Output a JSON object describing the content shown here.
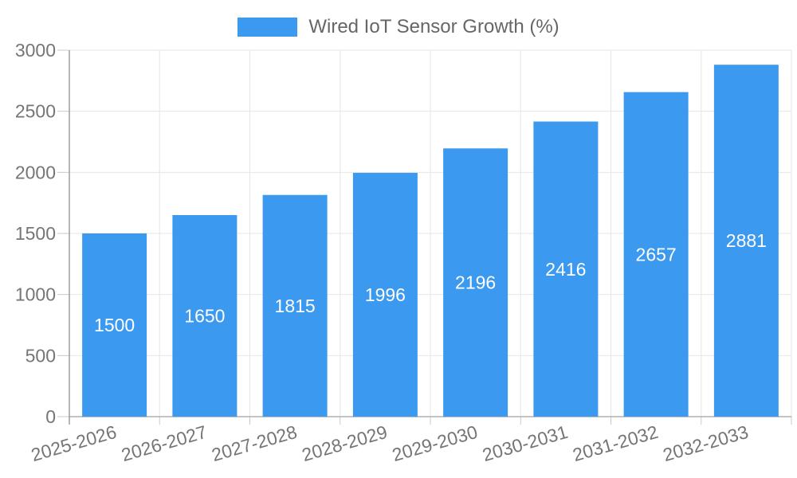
{
  "chart_data": {
    "type": "bar",
    "title": "Wired IoT Sensor Growth (%)",
    "categories": [
      "2025-2026",
      "2026-2027",
      "2027-2028",
      "2028-2029",
      "2029-2030",
      "2030-2031",
      "2031-2032",
      "2032-2033"
    ],
    "series": [
      {
        "name": "Wired IoT Sensor Growth (%)",
        "values": [
          1500,
          1650,
          1815,
          1996,
          2196,
          2416,
          2657,
          2881
        ]
      }
    ],
    "xlabel": "",
    "ylabel": "",
    "ylim": [
      0,
      3000
    ],
    "yticks": [
      0,
      500,
      1000,
      1500,
      2000,
      2500,
      3000
    ],
    "grid": true,
    "legend_position": "top-center",
    "bar_value_labels": true,
    "x_label_rotation_deg": -16,
    "colors": {
      "bar": "#3B99F0",
      "bar_label": "#ffffff",
      "axis_line": "#9e9e9e",
      "baseline": "#b0b0b0",
      "gridline": "#e6e6e6",
      "minor_tick": "#c8c8c8",
      "tick_label": "#757575",
      "legend_text": "#666666",
      "background": "#ffffff"
    }
  }
}
